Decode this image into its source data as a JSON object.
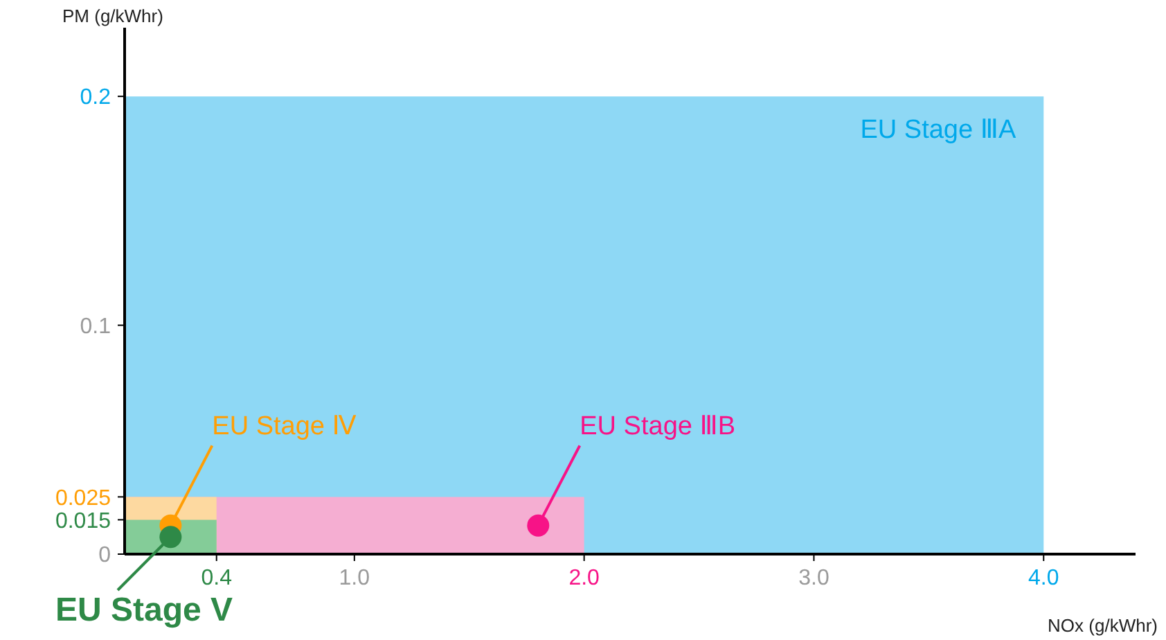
{
  "chart_data": {
    "type": "area",
    "xlabel": "NOx (g/kWhr)",
    "ylabel": "PM (g/kWhr)",
    "xlim": [
      0,
      4.4
    ],
    "ylim": [
      0,
      0.23
    ],
    "xticks": [
      {
        "value": 0.4,
        "label": "0.4"
      },
      {
        "value": 1,
        "label": "1.0"
      },
      {
        "value": 2,
        "label": "2.0"
      },
      {
        "value": 3,
        "label": "3.0"
      },
      {
        "value": 4,
        "label": "4.0"
      }
    ],
    "yticks": [
      0,
      0.015,
      0.025,
      0.1,
      0.2
    ],
    "series": [
      {
        "name": "EU Stage ⅢA",
        "color": "#8ed8f5",
        "x": [
          0,
          4.0
        ],
        "values": [
          0.2,
          0.2
        ]
      },
      {
        "name": "EU Stage ⅢB",
        "color": "#f5aed2",
        "x": [
          0,
          2.0
        ],
        "values": [
          0.025,
          0.025
        ]
      },
      {
        "name": "EU Stage Ⅳ",
        "color": "#fdd9a0",
        "x": [
          0,
          0.4
        ],
        "values": [
          0.025,
          0.025
        ]
      },
      {
        "name": "EU Stage V",
        "color": "#84cc98",
        "x": [
          0,
          0.4
        ],
        "values": [
          0.015,
          0.015
        ]
      }
    ]
  }
}
